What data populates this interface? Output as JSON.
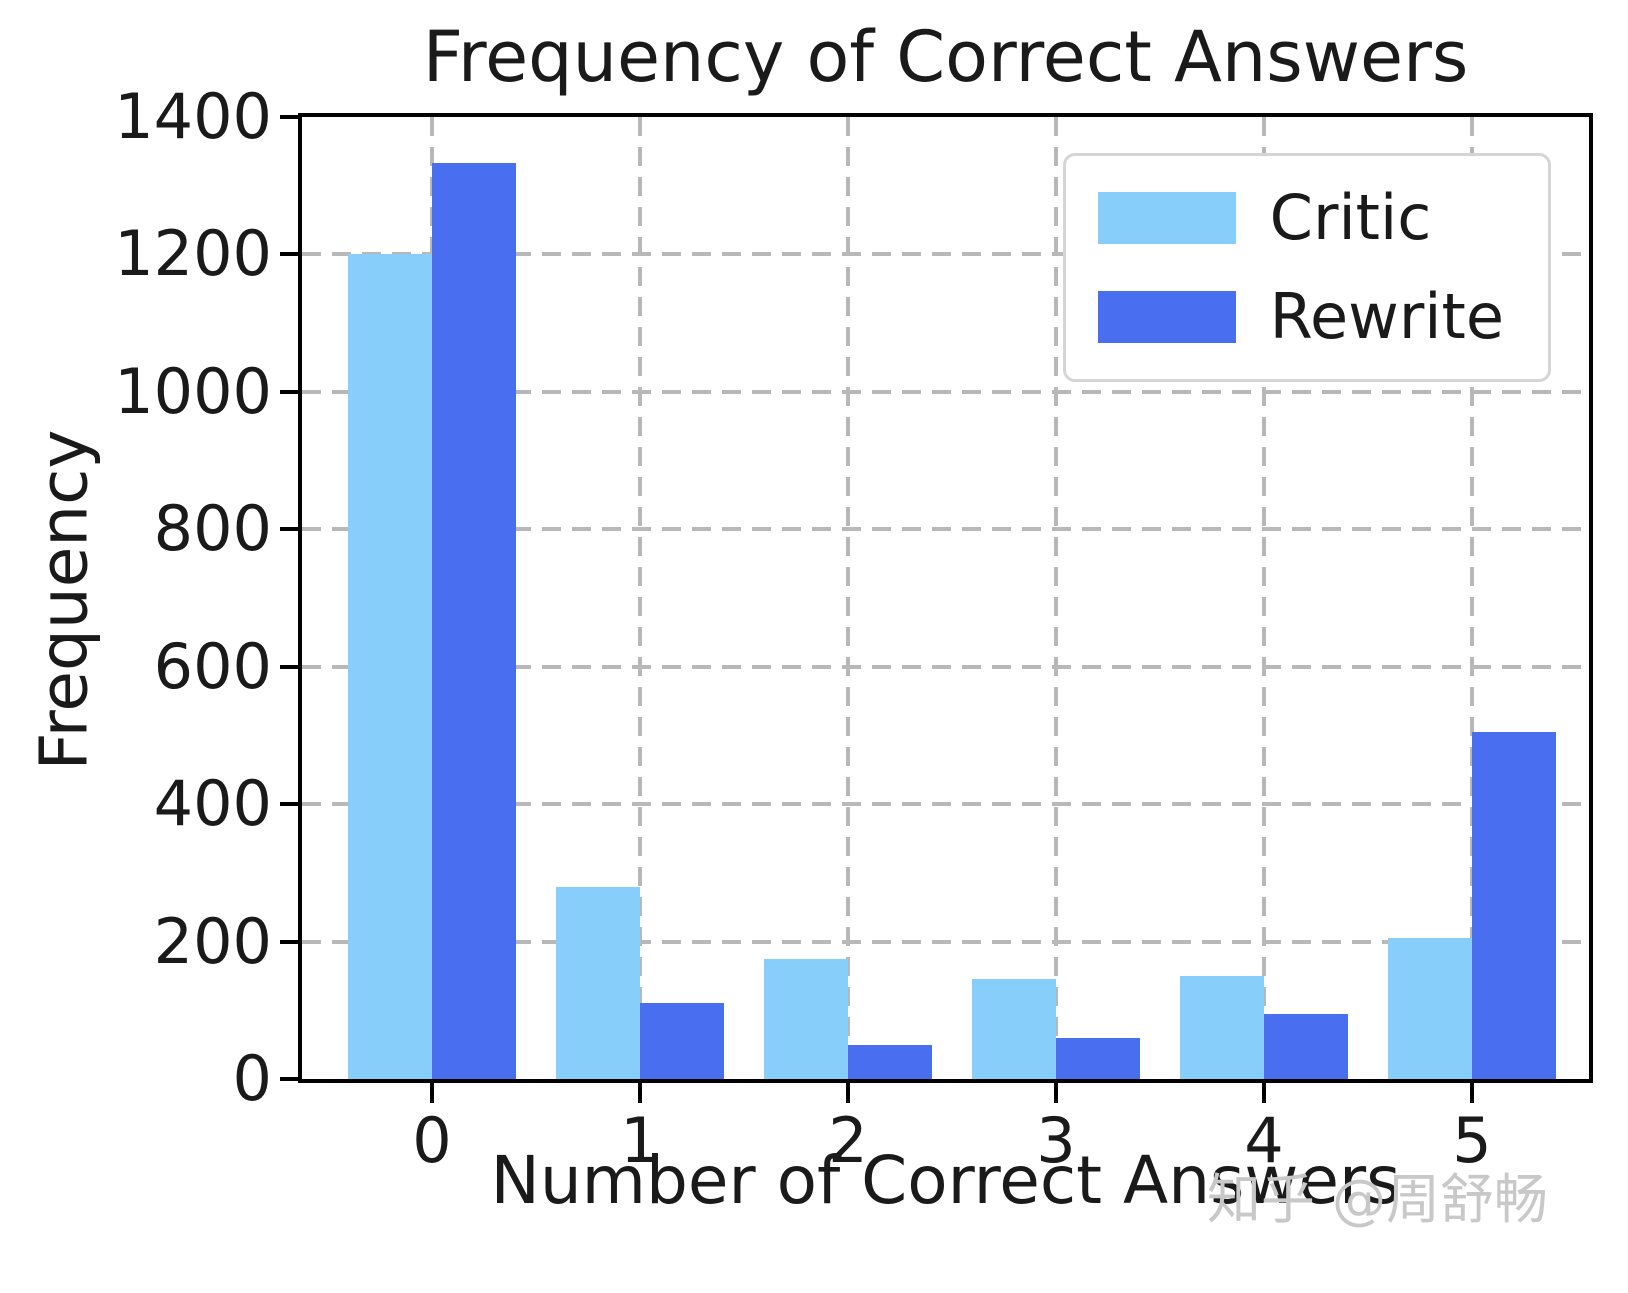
{
  "chart_data": {
    "type": "bar",
    "title": "Frequency of Correct Answers",
    "xlabel": "Number of Correct Answers",
    "ylabel": "Frequency",
    "categories": [
      "0",
      "1",
      "2",
      "3",
      "4",
      "5"
    ],
    "series": [
      {
        "name": "Critic",
        "color": "#87cefa",
        "values": [
          1200,
          280,
          175,
          145,
          150,
          205
        ]
      },
      {
        "name": "Rewrite",
        "color": "#4a6ef0",
        "values": [
          1333,
          110,
          50,
          60,
          95,
          505
        ]
      }
    ],
    "ylim": [
      0,
      1400
    ],
    "yticks": [
      0,
      200,
      400,
      600,
      800,
      1000,
      1200,
      1400
    ],
    "grid": true,
    "grid_style": "dashed",
    "legend_position": "upper right"
  },
  "colors": {
    "grid": "#b8b8b8",
    "spine": "#000000",
    "legend_border": "#d5d5d5",
    "watermark": "#c8c8c8",
    "background": "#ffffff"
  },
  "watermark": {
    "text": "知乎 @周舒畅"
  }
}
